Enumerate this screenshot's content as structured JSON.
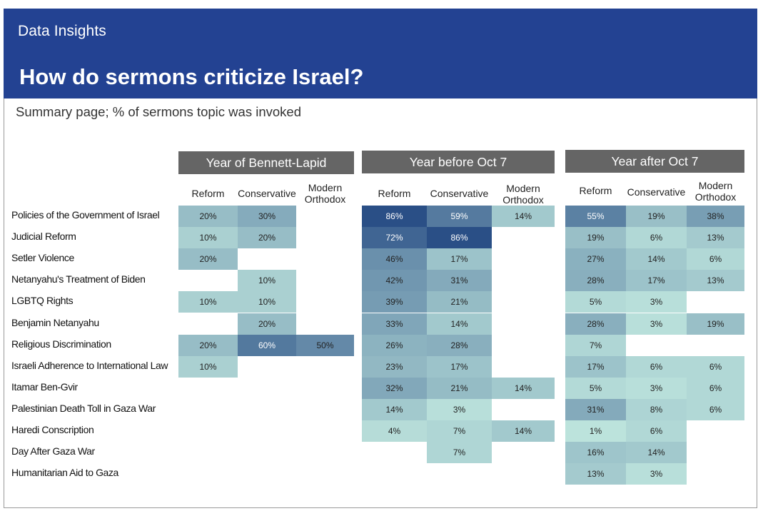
{
  "header": {
    "kicker": "Data Insights",
    "title": "How do sermons criticize Israel?",
    "subtitle": "Summary page; % of sermons topic was invoked"
  },
  "colors": {
    "banner": "#234292",
    "panel_header": "#656565",
    "scale": [
      "#bfe6de",
      "#2a4f86"
    ]
  },
  "chart_data": {
    "type": "heatmap",
    "unit": "%",
    "rows": [
      "Policies of the Government of Israel",
      "Judicial Reform",
      "Setler Violence",
      "Netanyahu's Treatment of Biden",
      "LGBTQ Rights",
      "Benjamin Netanyahu",
      "Religious Discrimination",
      "Israeli Adherence to International Law",
      "Itamar Ben-Gvir",
      "Palestinian Death Toll in Gaza War",
      "Haredi Conscription",
      "Day After Gaza War",
      "Humanitarian Aid to Gaza"
    ],
    "columns": [
      "Reform",
      "Conservative",
      "Modern Orthodox"
    ],
    "panels": [
      {
        "title": "Year of Bennett-Lapid",
        "values": [
          [
            20,
            30,
            null
          ],
          [
            10,
            20,
            null
          ],
          [
            20,
            null,
            null
          ],
          [
            null,
            10,
            null
          ],
          [
            10,
            10,
            null
          ],
          [
            null,
            20,
            null
          ],
          [
            20,
            60,
            50
          ],
          [
            10,
            null,
            null
          ],
          [
            null,
            null,
            null
          ],
          [
            null,
            null,
            null
          ],
          [
            null,
            null,
            null
          ],
          [
            null,
            null,
            null
          ],
          [
            null,
            null,
            null
          ]
        ]
      },
      {
        "title": "Year before Oct 7",
        "values": [
          [
            86,
            59,
            14
          ],
          [
            72,
            86,
            null
          ],
          [
            46,
            17,
            null
          ],
          [
            42,
            31,
            null
          ],
          [
            39,
            21,
            null
          ],
          [
            33,
            14,
            null
          ],
          [
            26,
            28,
            null
          ],
          [
            23,
            17,
            null
          ],
          [
            32,
            21,
            14
          ],
          [
            14,
            3,
            null
          ],
          [
            4,
            7,
            14
          ],
          [
            null,
            7,
            null
          ],
          [
            null,
            null,
            null
          ]
        ]
      },
      {
        "title": "Year after Oct 7",
        "values": [
          [
            55,
            19,
            38
          ],
          [
            19,
            6,
            13
          ],
          [
            27,
            14,
            6
          ],
          [
            28,
            17,
            13
          ],
          [
            5,
            3,
            null
          ],
          [
            28,
            3,
            19
          ],
          [
            7,
            null,
            null
          ],
          [
            17,
            6,
            6
          ],
          [
            5,
            3,
            6
          ],
          [
            31,
            8,
            6
          ],
          [
            1,
            6,
            null
          ],
          [
            16,
            14,
            null
          ],
          [
            13,
            3,
            null
          ]
        ]
      }
    ]
  }
}
